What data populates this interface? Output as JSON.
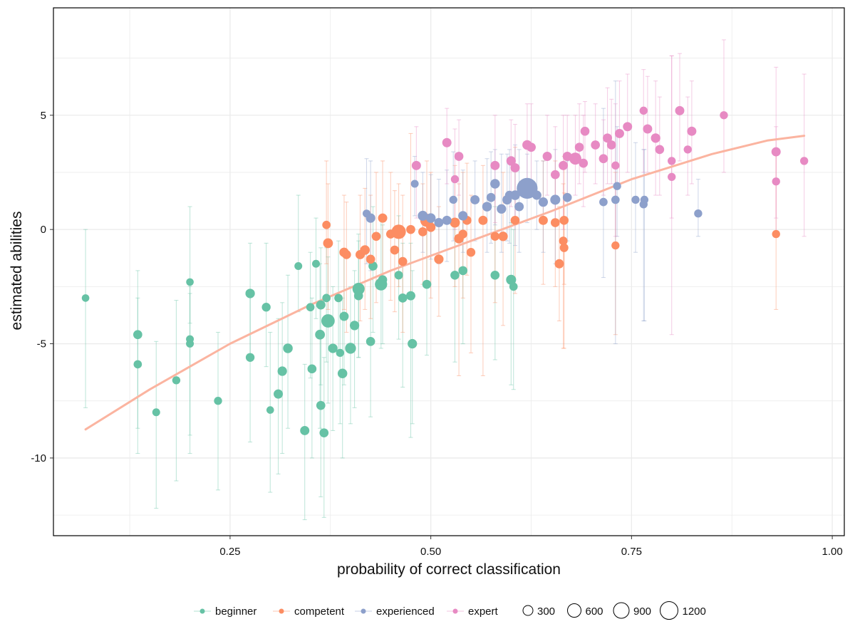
{
  "chart_data": {
    "type": "scatter",
    "title": "",
    "xlabel": "probability of correct classification",
    "ylabel": "estimated abilities",
    "xlim": [
      0.03,
      1.015
    ],
    "ylim": [
      -13.4,
      9.7
    ],
    "x_ticks": [
      0.25,
      0.5,
      0.75,
      1.0
    ],
    "x_tick_labels": [
      "0.25",
      "0.50",
      "0.75",
      "1.00"
    ],
    "y_ticks": [
      -10,
      -5,
      0,
      5
    ],
    "y_tick_labels": [
      "-10",
      "-5",
      "0",
      "5"
    ],
    "grid": true,
    "legend_position": "bottom",
    "colors": {
      "beginner": "#66c2a5",
      "competent": "#fc8d62",
      "experienced": "#8da0cb",
      "expert": "#e78ac3",
      "fit_line": "#fbb4a0",
      "frame": "#000000",
      "grid": "#ebebeb"
    },
    "legend_groups": [
      "beginner",
      "competent",
      "experienced",
      "expert"
    ],
    "size_legend": {
      "values": [
        300,
        600,
        900,
        1200
      ],
      "labels": [
        "300",
        "600",
        "900",
        "1200"
      ]
    },
    "fit_line": [
      [
        0.07,
        -8.75
      ],
      [
        0.15,
        -7.0
      ],
      [
        0.25,
        -5.0
      ],
      [
        0.35,
        -3.3
      ],
      [
        0.45,
        -1.8
      ],
      [
        0.55,
        -0.5
      ],
      [
        0.65,
        0.8
      ],
      [
        0.75,
        2.2
      ],
      [
        0.85,
        3.3
      ],
      [
        0.92,
        3.9
      ],
      [
        0.965,
        4.1
      ]
    ],
    "series": [
      {
        "name": "beginner",
        "points": [
          [
            0.07,
            -3.0,
            -7.8,
            0.0,
            90
          ],
          [
            0.135,
            -4.6,
            -9.8,
            -1.8,
            150
          ],
          [
            0.135,
            -5.9,
            -8.7,
            -3.0,
            120
          ],
          [
            0.158,
            -8.0,
            -12.2,
            -4.9,
            100
          ],
          [
            0.183,
            -6.6,
            -11.0,
            -3.1,
            110
          ],
          [
            0.2,
            -2.3,
            -4.1,
            1.0,
            90
          ],
          [
            0.2,
            -5.0,
            -9.8,
            -2.8,
            100
          ],
          [
            0.2,
            -4.8,
            -9.0,
            -2.5,
            100
          ],
          [
            0.235,
            -7.5,
            -11.4,
            -4.5,
            110
          ],
          [
            0.275,
            -2.8,
            -5.5,
            -0.6,
            170
          ],
          [
            0.275,
            -5.6,
            -9.3,
            -2.8,
            140
          ],
          [
            0.295,
            -3.4,
            -6.0,
            -0.6,
            140
          ],
          [
            0.3,
            -7.9,
            -11.5,
            -4.5,
            90
          ],
          [
            0.31,
            -7.2,
            -10.7,
            -3.9,
            160
          ],
          [
            0.315,
            -6.2,
            -9.8,
            -3.2,
            170
          ],
          [
            0.322,
            -5.2,
            -8.7,
            -2.0,
            180
          ],
          [
            0.335,
            -1.6,
            -3.6,
            1.5,
            100
          ],
          [
            0.343,
            -8.8,
            -12.7,
            -5.9,
            160
          ],
          [
            0.35,
            -3.4,
            -6.5,
            -1.0,
            120
          ],
          [
            0.352,
            -6.1,
            -10.0,
            -3.0,
            150
          ],
          [
            0.357,
            -1.5,
            -3.9,
            0.5,
            100
          ],
          [
            0.362,
            -4.6,
            -8.7,
            -1.5,
            190
          ],
          [
            0.363,
            -7.7,
            -11.7,
            -4.6,
            150
          ],
          [
            0.363,
            -3.3,
            -6.8,
            -0.8,
            160
          ],
          [
            0.367,
            -8.9,
            -12.6,
            -5.6,
            150
          ],
          [
            0.37,
            -3.0,
            -5.8,
            -0.8,
            120
          ],
          [
            0.372,
            -4.0,
            -7.6,
            -1.2,
            420
          ],
          [
            0.378,
            -5.2,
            -8.8,
            -2.5,
            170
          ],
          [
            0.385,
            -3.0,
            -5.5,
            -0.5,
            120
          ],
          [
            0.387,
            -5.4,
            -8.5,
            -3.0,
            110
          ],
          [
            0.39,
            -6.3,
            -10.0,
            -3.0,
            180
          ],
          [
            0.392,
            -3.8,
            -6.8,
            -1.1,
            160
          ],
          [
            0.4,
            -5.2,
            -8.5,
            -2.5,
            250
          ],
          [
            0.405,
            -4.2,
            -7.8,
            -1.8,
            170
          ],
          [
            0.41,
            -2.6,
            -5.6,
            -0.2,
            330
          ],
          [
            0.41,
            -2.9,
            -5.6,
            -0.5,
            150
          ],
          [
            0.425,
            -4.9,
            -8.2,
            -2.2,
            150
          ],
          [
            0.428,
            -1.6,
            -4.5,
            1.0,
            150
          ],
          [
            0.438,
            -2.4,
            -5.2,
            0.5,
            340
          ],
          [
            0.44,
            -2.2,
            -5.0,
            0.2,
            150
          ],
          [
            0.46,
            -2.0,
            -4.8,
            0.6,
            130
          ],
          [
            0.465,
            -3.0,
            -6.9,
            -0.6,
            150
          ],
          [
            0.475,
            -2.9,
            -9.1,
            -0.6,
            160
          ],
          [
            0.477,
            -5.0,
            -8.5,
            -1.8,
            170
          ],
          [
            0.495,
            -2.4,
            -5.5,
            0.2,
            150
          ],
          [
            0.53,
            -2.0,
            -5.8,
            0.2,
            150
          ],
          [
            0.54,
            -1.8,
            -5.0,
            0.5,
            150
          ],
          [
            0.58,
            -2.0,
            -5.7,
            1.0,
            150
          ],
          [
            0.6,
            -2.2,
            -6.8,
            0.3,
            200
          ],
          [
            0.603,
            -2.5,
            -7.0,
            0.0,
            120
          ]
        ]
      },
      {
        "name": "competent",
        "points": [
          [
            0.37,
            0.2,
            -1.5,
            3.0,
            120
          ],
          [
            0.372,
            -0.6,
            -3.5,
            2.0,
            190
          ],
          [
            0.392,
            -1.0,
            -3.5,
            1.5,
            170
          ],
          [
            0.395,
            -1.1,
            -4.5,
            1.2,
            150
          ],
          [
            0.412,
            -1.1,
            -4.0,
            1.5,
            160
          ],
          [
            0.418,
            -0.9,
            -3.5,
            1.8,
            180
          ],
          [
            0.425,
            -1.3,
            -3.9,
            1.5,
            150
          ],
          [
            0.432,
            -0.3,
            -3.2,
            2.5,
            150
          ],
          [
            0.44,
            0.5,
            -2.5,
            3.0,
            160
          ],
          [
            0.45,
            -0.2,
            -3.1,
            2.5,
            150
          ],
          [
            0.455,
            -0.9,
            -3.6,
            1.7,
            150
          ],
          [
            0.46,
            -0.1,
            -2.5,
            2.0,
            500
          ],
          [
            0.465,
            -1.4,
            -4.5,
            1.5,
            150
          ],
          [
            0.475,
            0.0,
            -2.9,
            4.2,
            150
          ],
          [
            0.49,
            -0.1,
            -2.4,
            2.0,
            150
          ],
          [
            0.495,
            0.4,
            -2.3,
            3.0,
            400
          ],
          [
            0.5,
            0.1,
            -3.0,
            2.5,
            170
          ],
          [
            0.51,
            -1.3,
            -3.8,
            1.0,
            170
          ],
          [
            0.53,
            0.3,
            -2.5,
            2.8,
            200
          ],
          [
            0.535,
            -0.4,
            -6.4,
            2.0,
            180
          ],
          [
            0.54,
            -0.2,
            -3.0,
            2.5,
            140
          ],
          [
            0.545,
            0.4,
            -2.0,
            2.9,
            150
          ],
          [
            0.55,
            -1.0,
            -5.4,
            1.5,
            140
          ],
          [
            0.565,
            0.4,
            -6.4,
            2.8,
            160
          ],
          [
            0.58,
            -0.3,
            -3.2,
            2.0,
            140
          ],
          [
            0.59,
            -0.3,
            -4.2,
            2.5,
            170
          ],
          [
            0.605,
            0.4,
            -2.8,
            3.6,
            150
          ],
          [
            0.64,
            0.4,
            -2.4,
            3.0,
            160
          ],
          [
            0.655,
            0.3,
            -2.5,
            3.0,
            150
          ],
          [
            0.66,
            -1.5,
            -4.0,
            1.0,
            160
          ],
          [
            0.665,
            -0.5,
            -5.2,
            2.0,
            130
          ],
          [
            0.666,
            -0.8,
            -5.2,
            1.6,
            130
          ],
          [
            0.666,
            0.4,
            -2.4,
            3.2,
            150
          ],
          [
            0.73,
            -0.7,
            -4.6,
            2.5,
            110
          ],
          [
            0.93,
            -0.2,
            -3.5,
            3.5,
            110
          ]
        ]
      },
      {
        "name": "experienced",
        "points": [
          [
            0.42,
            0.7,
            -1.5,
            3.1,
            100
          ],
          [
            0.425,
            0.5,
            -1.8,
            3.0,
            170
          ],
          [
            0.48,
            2.0,
            0.6,
            3.2,
            100
          ],
          [
            0.49,
            0.6,
            -1.0,
            2.5,
            200
          ],
          [
            0.5,
            0.5,
            -1.3,
            2.4,
            180
          ],
          [
            0.51,
            0.3,
            -1.5,
            2.2,
            160
          ],
          [
            0.52,
            0.4,
            -1.4,
            2.6,
            160
          ],
          [
            0.528,
            1.3,
            -0.5,
            3.4,
            110
          ],
          [
            0.54,
            0.6,
            -1.0,
            2.6,
            170
          ],
          [
            0.555,
            1.3,
            -0.5,
            3.0,
            160
          ],
          [
            0.57,
            1.0,
            -1.0,
            3.1,
            180
          ],
          [
            0.575,
            1.4,
            -0.6,
            3.4,
            150
          ],
          [
            0.58,
            2.0,
            0.2,
            3.5,
            180
          ],
          [
            0.588,
            0.9,
            -1.0,
            3.3,
            170
          ],
          [
            0.595,
            1.3,
            -0.5,
            3.3,
            170
          ],
          [
            0.598,
            1.5,
            -0.6,
            3.5,
            150
          ],
          [
            0.605,
            1.5,
            -0.7,
            3.7,
            180
          ],
          [
            0.61,
            1.0,
            -1.0,
            3.5,
            160
          ],
          [
            0.62,
            1.8,
            0.3,
            3.3,
            1200
          ],
          [
            0.632,
            1.5,
            0.0,
            3.0,
            160
          ],
          [
            0.64,
            1.2,
            -1.0,
            3.0,
            170
          ],
          [
            0.655,
            1.3,
            -1.5,
            3.5,
            200
          ],
          [
            0.67,
            1.4,
            -0.5,
            3.0,
            150
          ],
          [
            0.715,
            1.2,
            -2.1,
            5.3,
            120
          ],
          [
            0.73,
            1.3,
            -5.0,
            6.5,
            120
          ],
          [
            0.732,
            1.9,
            -0.3,
            4.5,
            110
          ],
          [
            0.755,
            1.3,
            -1.0,
            3.8,
            110
          ],
          [
            0.765,
            1.1,
            -4.0,
            3.5,
            110
          ],
          [
            0.766,
            1.3,
            -4.0,
            3.5,
            110
          ],
          [
            0.833,
            0.7,
            -0.3,
            2.2,
            110
          ]
        ]
      },
      {
        "name": "expert",
        "points": [
          [
            0.482,
            2.8,
            0.5,
            4.5,
            160
          ],
          [
            0.52,
            3.8,
            2.0,
            5.3,
            160
          ],
          [
            0.53,
            2.2,
            0.0,
            4.4,
            110
          ],
          [
            0.535,
            3.2,
            1.5,
            4.8,
            150
          ],
          [
            0.58,
            2.8,
            0.3,
            5.0,
            160
          ],
          [
            0.6,
            3.0,
            1.0,
            4.8,
            170
          ],
          [
            0.605,
            2.7,
            0.5,
            4.6,
            160
          ],
          [
            0.62,
            3.7,
            2.0,
            5.5,
            180
          ],
          [
            0.625,
            3.6,
            1.8,
            5.5,
            160
          ],
          [
            0.645,
            3.2,
            1.5,
            5.0,
            160
          ],
          [
            0.655,
            2.4,
            0.3,
            4.5,
            150
          ],
          [
            0.665,
            2.8,
            0.0,
            5.0,
            160
          ],
          [
            0.67,
            3.2,
            1.3,
            5.0,
            160
          ],
          [
            0.68,
            3.1,
            1.5,
            5.0,
            320
          ],
          [
            0.685,
            3.6,
            2.0,
            5.5,
            150
          ],
          [
            0.69,
            2.9,
            1.0,
            5.0,
            150
          ],
          [
            0.692,
            4.3,
            2.5,
            5.6,
            150
          ],
          [
            0.705,
            3.7,
            2.0,
            5.5,
            150
          ],
          [
            0.715,
            3.1,
            1.5,
            4.8,
            150
          ],
          [
            0.72,
            4.0,
            2.0,
            6.2,
            160
          ],
          [
            0.725,
            3.7,
            2.0,
            5.7,
            150
          ],
          [
            0.73,
            2.8,
            -0.3,
            5.5,
            110
          ],
          [
            0.735,
            4.2,
            2.0,
            6.5,
            160
          ],
          [
            0.745,
            4.5,
            2.5,
            6.8,
            160
          ],
          [
            0.765,
            5.2,
            2.5,
            7.0,
            110
          ],
          [
            0.77,
            4.4,
            2.5,
            6.7,
            160
          ],
          [
            0.78,
            4.0,
            1.5,
            6.5,
            170
          ],
          [
            0.785,
            3.5,
            1.5,
            5.8,
            150
          ],
          [
            0.8,
            3.0,
            0.5,
            7.6,
            110
          ],
          [
            0.8,
            2.3,
            -4.6,
            7.6,
            110
          ],
          [
            0.81,
            5.2,
            3.0,
            7.7,
            160
          ],
          [
            0.82,
            3.5,
            1.5,
            5.8,
            110
          ],
          [
            0.825,
            4.3,
            2.0,
            6.5,
            160
          ],
          [
            0.865,
            5.0,
            2.5,
            8.3,
            110
          ],
          [
            0.93,
            3.4,
            0.5,
            7.1,
            160
          ],
          [
            0.93,
            2.1,
            -0.2,
            4.5,
            110
          ],
          [
            0.965,
            3.0,
            -0.3,
            6.8,
            110
          ]
        ]
      }
    ]
  }
}
